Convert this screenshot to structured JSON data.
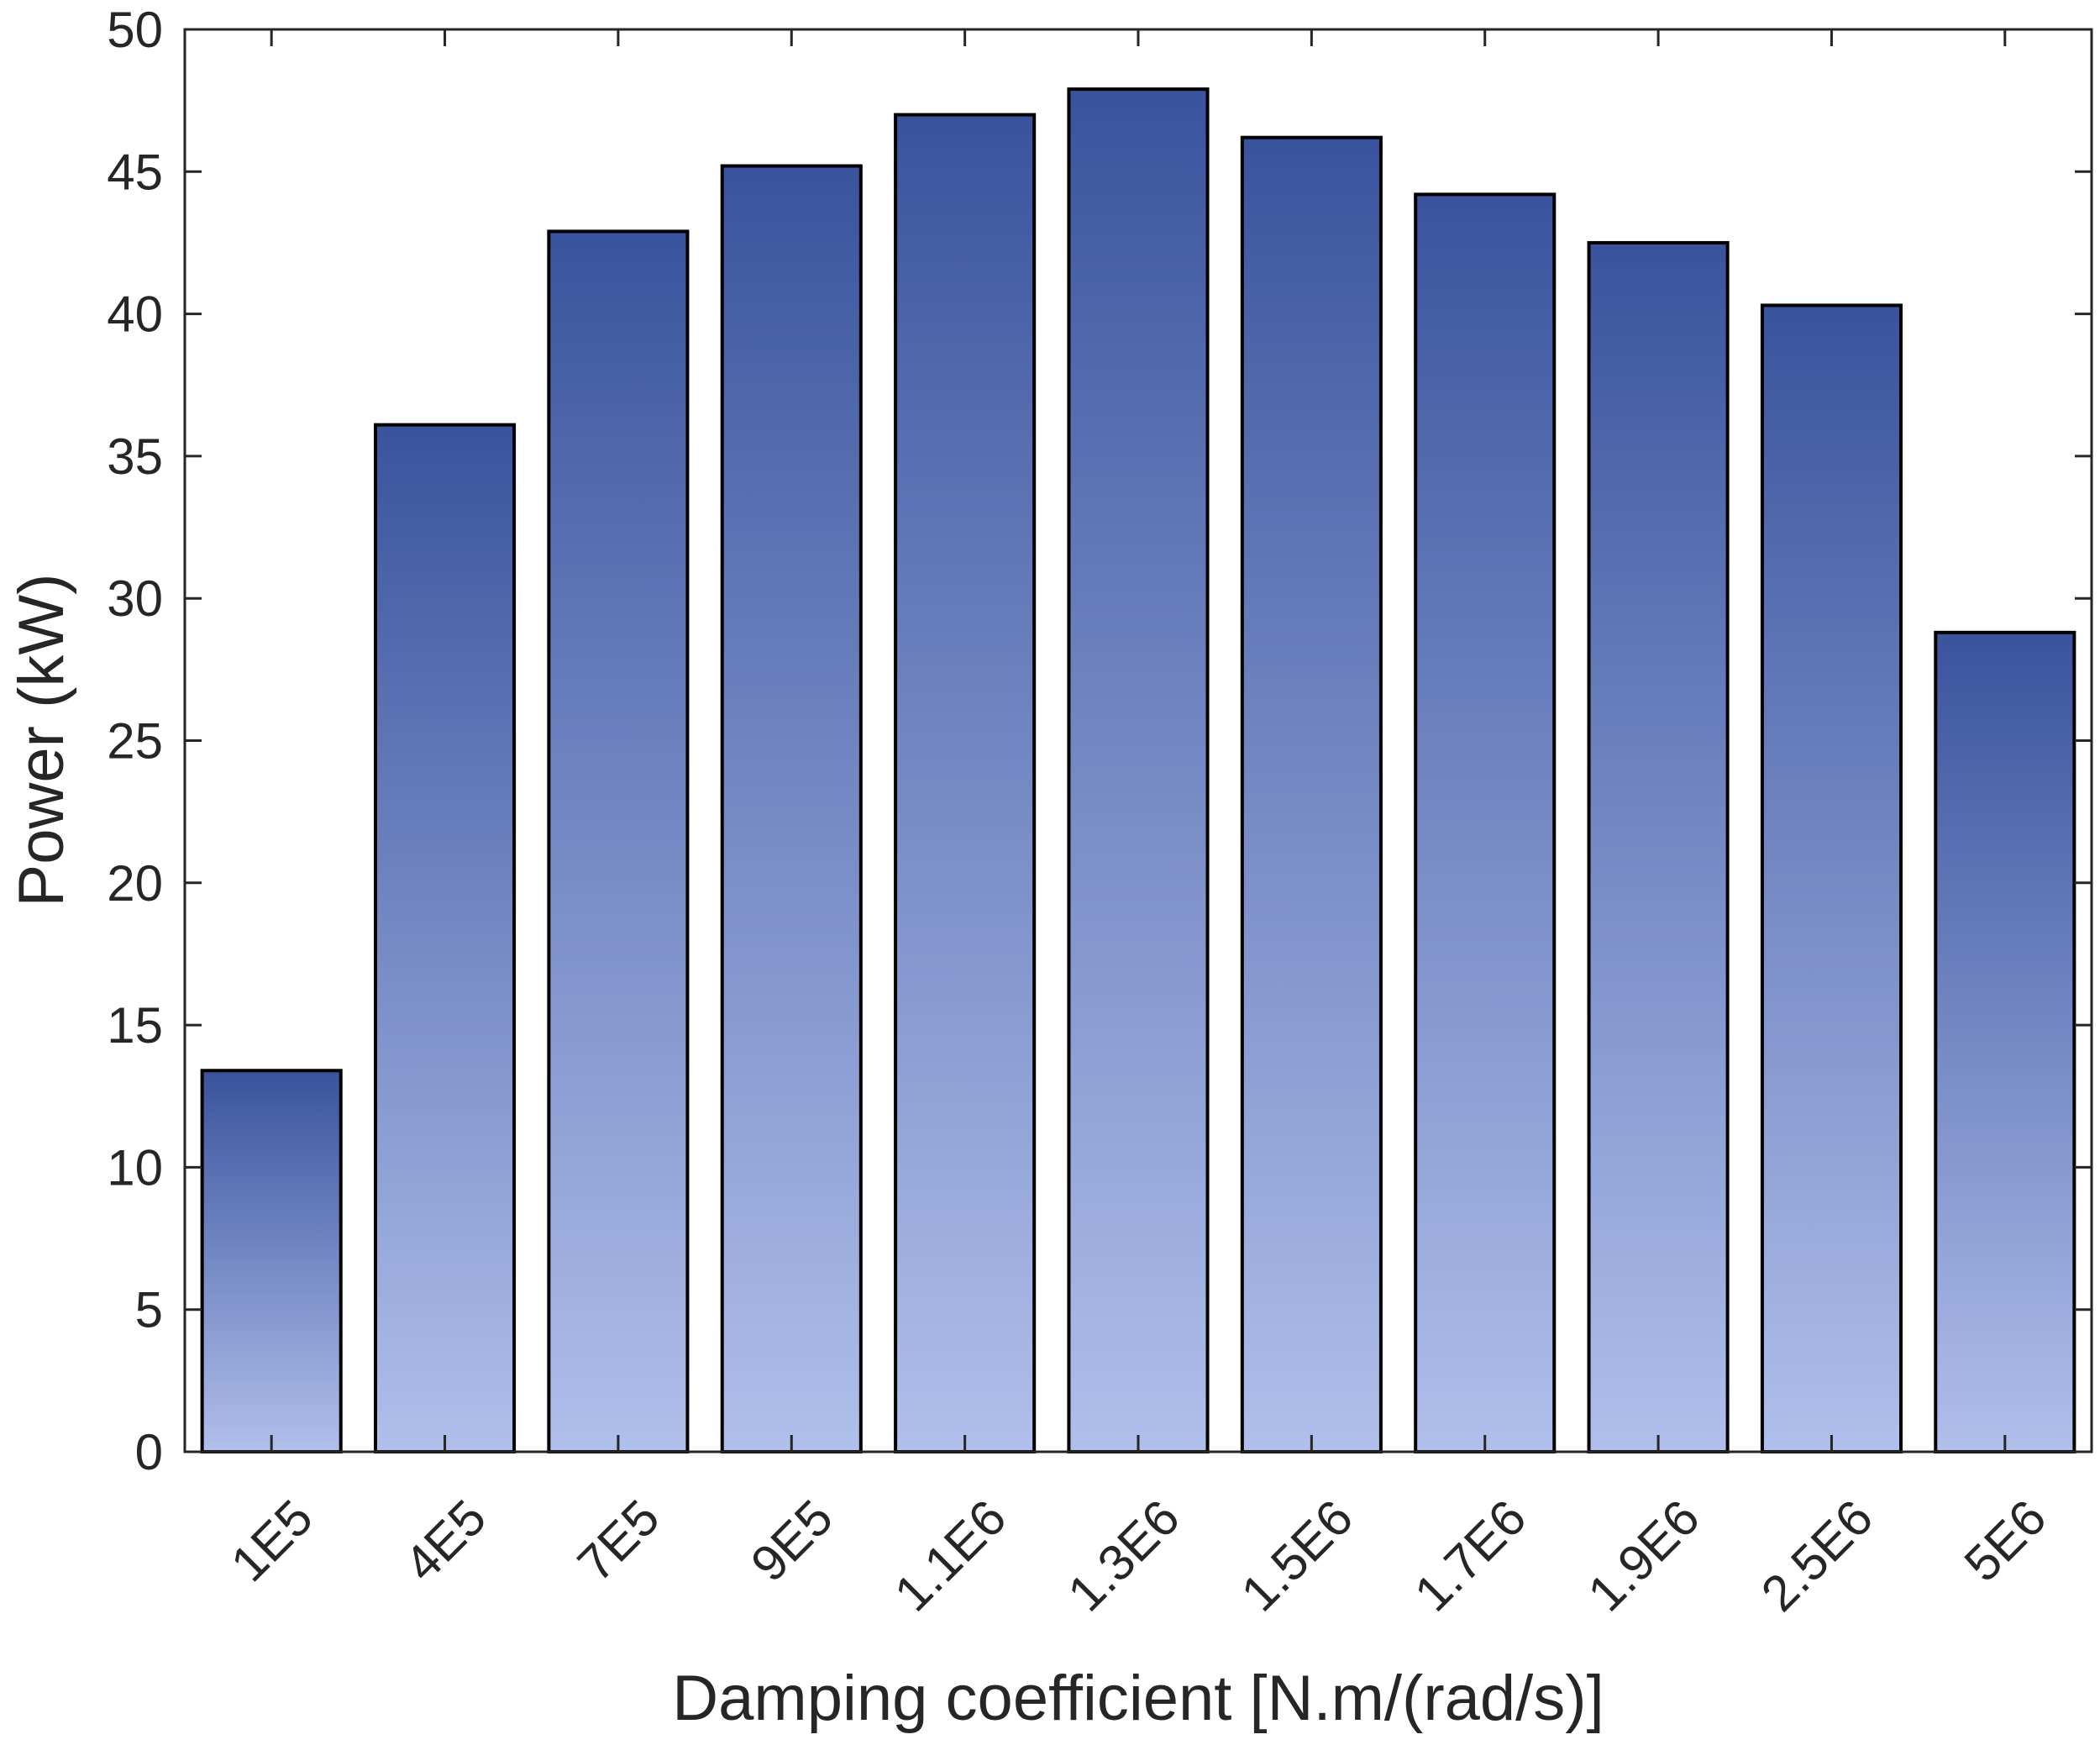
{
  "chart_data": {
    "type": "bar",
    "title": "",
    "xlabel": "Damping coefficient [N.m/(rad/s)]",
    "ylabel": "Power (kW)",
    "categories": [
      "1E5",
      "4E5",
      "7E5",
      "9E5",
      "1.1E6",
      "1.3E6",
      "1.5E6",
      "1.7E6",
      "1.9E6",
      "2.5E6",
      "5E6"
    ],
    "values": [
      13.4,
      36.1,
      42.9,
      45.2,
      47.0,
      47.9,
      46.2,
      44.2,
      42.5,
      40.3,
      28.8
    ],
    "ylim": [
      0,
      50
    ],
    "yticks": [
      0,
      5,
      10,
      15,
      20,
      25,
      30,
      35,
      40,
      45,
      50
    ],
    "grid": false,
    "colors": {
      "bar_top": "#3a539d",
      "bar_bottom": "#b0bfeb",
      "bar_edge": "#000000",
      "axis": "#262626"
    }
  }
}
